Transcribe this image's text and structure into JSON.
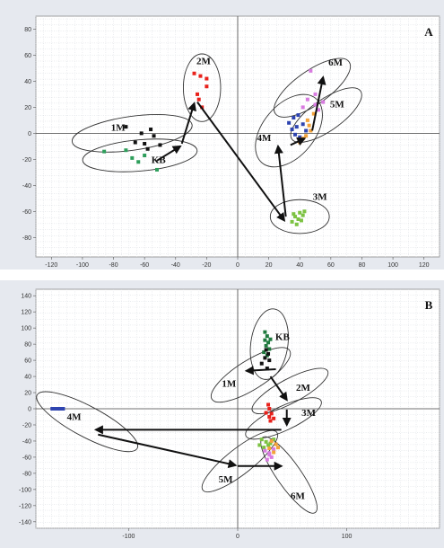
{
  "chart_data": [
    {
      "type": "scatter",
      "panel_label": "A",
      "xlim": [
        -130,
        130
      ],
      "ylim": [
        -95,
        90
      ],
      "x_ticks": [
        -120,
        -100,
        -80,
        -60,
        -40,
        -20,
        0,
        20,
        40,
        60,
        80,
        100,
        120
      ],
      "y_ticks": [
        80,
        60,
        40,
        20,
        0,
        -20,
        -40,
        -60,
        -80
      ],
      "grid": true,
      "series": [
        {
          "name": "1M",
          "color": "#111111",
          "points": [
            [
              -72,
              5
            ],
            [
              -62,
              0
            ],
            [
              -56,
              3
            ],
            [
              -54,
              -2
            ],
            [
              -60,
              -8
            ],
            [
              -66,
              -7
            ],
            [
              -58,
              -12
            ],
            [
              -50,
              -9
            ]
          ]
        },
        {
          "name": "KB",
          "color": "#2e9e5b",
          "points": [
            [
              -86,
              -14
            ],
            [
              -72,
              -13
            ],
            [
              -68,
              -19
            ],
            [
              -64,
              -22
            ],
            [
              -60,
              -17
            ],
            [
              -52,
              -28
            ]
          ]
        },
        {
          "name": "2M",
          "color": "#e8211b",
          "points": [
            [
              -28,
              46
            ],
            [
              -24,
              44
            ],
            [
              -20,
              42
            ],
            [
              -20,
              36
            ],
            [
              -26,
              30
            ],
            [
              -25,
              26
            ],
            [
              -23,
              20
            ]
          ]
        },
        {
          "name": "3M",
          "color": "#7cc242",
          "points": [
            [
              35,
              -68
            ],
            [
              37,
              -64
            ],
            [
              39,
              -66
            ],
            [
              40,
              -61
            ],
            [
              42,
              -63
            ],
            [
              41,
              -67
            ],
            [
              38,
              -70
            ],
            [
              43,
              -60
            ],
            [
              36,
              -62
            ]
          ]
        },
        {
          "name": "4M",
          "color": "#2e44b0",
          "points": [
            [
              33,
              8
            ],
            [
              35,
              3
            ],
            [
              37,
              -1
            ],
            [
              39,
              14
            ],
            [
              38,
              5
            ],
            [
              40,
              -3
            ],
            [
              42,
              7
            ],
            [
              36,
              12
            ],
            [
              44,
              2
            ]
          ]
        },
        {
          "name": "5M",
          "color": "#f2a23a",
          "points": [
            [
              40,
              -7
            ],
            [
              42,
              -4
            ],
            [
              45,
              10
            ],
            [
              47,
              2
            ],
            [
              44,
              -2
            ],
            [
              49,
              15
            ],
            [
              46,
              6
            ]
          ]
        },
        {
          "name": "6M",
          "color": "#d87be0",
          "points": [
            [
              47,
              48
            ],
            [
              54,
              40
            ],
            [
              50,
              30
            ],
            [
              45,
              26
            ],
            [
              55,
              24
            ],
            [
              50,
              22
            ],
            [
              42,
              20
            ],
            [
              52,
              18
            ]
          ]
        }
      ],
      "labels": [
        {
          "text": "1M",
          "x": -77,
          "y": 2
        },
        {
          "text": "KB",
          "x": -51,
          "y": -23
        },
        {
          "text": "2M",
          "x": -22,
          "y": 53
        },
        {
          "text": "3M",
          "x": 53,
          "y": -51
        },
        {
          "text": "4M",
          "x": 17,
          "y": -6
        },
        {
          "text": "5M",
          "x": 64,
          "y": 20
        },
        {
          "text": "6M",
          "x": 63,
          "y": 52
        }
      ],
      "ellipses": [
        {
          "cx": -68,
          "cy": 0,
          "rx": 39,
          "ry": 13,
          "angle": -8
        },
        {
          "cx": -63,
          "cy": -17,
          "rx": 37,
          "ry": 12,
          "angle": -5
        },
        {
          "cx": -23,
          "cy": 35,
          "rx": 12,
          "ry": 26,
          "angle": 0
        },
        {
          "cx": 40,
          "cy": -64,
          "rx": 19,
          "ry": 13,
          "angle": 0
        },
        {
          "cx": 33,
          "cy": 2,
          "rx": 27,
          "ry": 20,
          "angle": -50
        },
        {
          "cx": 57,
          "cy": 14,
          "rx": 27,
          "ry": 12,
          "angle": -35
        },
        {
          "cx": 48,
          "cy": 35,
          "rx": 29,
          "ry": 13,
          "angle": -35
        }
      ],
      "arrows": [
        {
          "from": [
            -52,
            -21
          ],
          "to": [
            -37,
            -10
          ]
        },
        {
          "from": [
            -36,
            -8
          ],
          "to": [
            -28,
            23
          ]
        },
        {
          "from": [
            -26,
            24
          ],
          "to": [
            30,
            -67
          ]
        },
        {
          "from": [
            31,
            -64
          ],
          "to": [
            26,
            -10
          ]
        },
        {
          "from": [
            34,
            -9
          ],
          "to": [
            43,
            -4
          ]
        },
        {
          "from": [
            48,
            2
          ],
          "to": [
            55,
            43
          ]
        }
      ]
    },
    {
      "type": "scatter",
      "panel_label": "B",
      "xlim": [
        -185,
        185
      ],
      "ylim": [
        -148,
        148
      ],
      "x_ticks": [
        -100,
        0,
        100
      ],
      "y_ticks": [
        140,
        120,
        100,
        80,
        60,
        40,
        20,
        0,
        -20,
        -40,
        -60,
        -80,
        -100,
        -120,
        -140
      ],
      "grid": true,
      "series": [
        {
          "name": "KB",
          "color": "#1f7a3e",
          "points": [
            [
              25,
              95
            ],
            [
              27,
              90
            ],
            [
              25,
              85
            ],
            [
              28,
              82
            ],
            [
              26,
              78
            ],
            [
              29,
              74
            ],
            [
              24,
              70
            ],
            [
              27,
              66
            ],
            [
              30,
              86
            ]
          ]
        },
        {
          "name": "1M",
          "color": "#111111",
          "points": [
            [
              26,
              73
            ],
            [
              28,
              68
            ],
            [
              25,
              63
            ],
            [
              29,
              60
            ],
            [
              22,
              56
            ],
            [
              27,
              50
            ]
          ]
        },
        {
          "name": "2M",
          "color": "#e8211b",
          "points": [
            [
              28,
              5
            ],
            [
              29,
              0
            ],
            [
              31,
              -6
            ],
            [
              29,
              -10
            ],
            [
              33,
              -12
            ],
            [
              30,
              -15
            ],
            [
              26,
              -5
            ]
          ]
        },
        {
          "name": "4M",
          "color": "#2e44b0",
          "points": [
            [
              -168,
              0
            ],
            [
              -166,
              0
            ],
            [
              -164,
              0
            ],
            [
              -162,
              0
            ],
            [
              -160,
              0
            ],
            [
              -170,
              0
            ]
          ]
        },
        {
          "name": "5M",
          "color": "#7cc242",
          "points": [
            [
              22,
              -38
            ],
            [
              26,
              -41
            ],
            [
              28,
              -45
            ],
            [
              24,
              -48
            ],
            [
              30,
              -43
            ],
            [
              33,
              -38
            ],
            [
              20,
              -45
            ]
          ]
        },
        {
          "name": "6M",
          "color": "#d87be0",
          "points": [
            [
              25,
              -52
            ],
            [
              29,
              -55
            ],
            [
              31,
              -60
            ],
            [
              27,
              -63
            ],
            [
              33,
              -50
            ],
            [
              29,
              -57
            ]
          ]
        },
        {
          "name": "",
          "color": "#f2a23a",
          "points": [
            [
              31,
              -40
            ],
            [
              35,
              -44
            ],
            [
              29,
              -49
            ],
            [
              33,
              -54
            ],
            [
              37,
              -48
            ]
          ]
        }
      ],
      "labels": [
        {
          "text": "KB",
          "x": 41,
          "y": 85
        },
        {
          "text": "1M",
          "x": -8,
          "y": 27
        },
        {
          "text": "2M",
          "x": 60,
          "y": 22
        },
        {
          "text": "3M",
          "x": 65,
          "y": -9
        },
        {
          "text": "4M",
          "x": -150,
          "y": -14
        },
        {
          "text": "5M",
          "x": -11,
          "y": -91
        },
        {
          "text": "6M",
          "x": 55,
          "y": -112
        }
      ],
      "ellipses": [
        {
          "cx": 29,
          "cy": 80,
          "rx": 17,
          "ry": 44,
          "angle": 8
        },
        {
          "cx": 12,
          "cy": 42,
          "rx": 42,
          "ry": 18,
          "angle": -32
        },
        {
          "cx": 48,
          "cy": 22,
          "rx": 39,
          "ry": 15,
          "angle": -28
        },
        {
          "cx": 42,
          "cy": -12,
          "rx": 38,
          "ry": 15,
          "angle": -25
        },
        {
          "cx": -138,
          "cy": -16,
          "rx": 52,
          "ry": 19,
          "angle": 28
        },
        {
          "cx": 2,
          "cy": -65,
          "rx": 43,
          "ry": 16,
          "angle": -38
        },
        {
          "cx": 47,
          "cy": -82,
          "rx": 42,
          "ry": 15,
          "angle": 55
        }
      ],
      "arrows": [
        {
          "from": [
            35,
            49
          ],
          "to": [
            8,
            47
          ]
        },
        {
          "from": [
            30,
            40
          ],
          "to": [
            45,
            11
          ]
        },
        {
          "from": [
            45,
            -1
          ],
          "to": [
            45,
            -20
          ]
        },
        {
          "from": [
            40,
            -26
          ],
          "to": [
            -130,
            -26
          ]
        },
        {
          "from": [
            -128,
            -32
          ],
          "to": [
            -2,
            -70
          ]
        },
        {
          "from": [
            0,
            -71
          ],
          "to": [
            40,
            -71
          ]
        }
      ]
    }
  ]
}
